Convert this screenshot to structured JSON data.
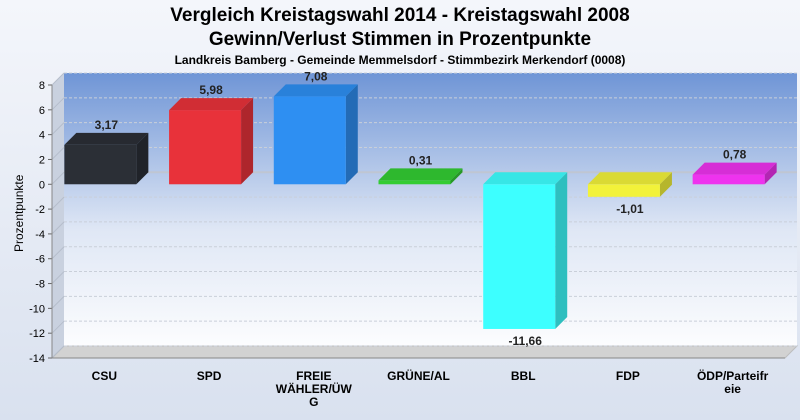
{
  "chart_data": {
    "type": "bar",
    "title": "Vergleich Kreistagswahl 2014 - Kreistagswahl 2008",
    "subtitle": "Gewinn/Verlust Stimmen in Prozentpunkte",
    "subtitle2": "Landkreis Bamberg - Gemeinde Memmelsdorf - Stimmbezirk Merkendorf (0008)",
    "ylabel": "Prozentpunkte",
    "xlabel": "",
    "ylim": [
      -14,
      8
    ],
    "yticks": [
      8,
      6,
      4,
      2,
      0,
      -2,
      -4,
      -6,
      -8,
      -10,
      -12,
      -14
    ],
    "grid": true,
    "categories": [
      "CSU",
      "SPD",
      "FREIE WÄHLER/ÜWG",
      "GRÜNE/AL",
      "BBL",
      "FDP",
      "ÖDP/Parteifreie"
    ],
    "category_label_lines": [
      [
        "CSU"
      ],
      [
        "SPD"
      ],
      [
        "FREIE",
        "WÄHLER/ÜW",
        "G"
      ],
      [
        "GRÜNE/AL"
      ],
      [
        "BBL"
      ],
      [
        "FDP"
      ],
      [
        "ÖDP/Parteifr",
        "eie"
      ]
    ],
    "values": [
      3.17,
      5.98,
      7.08,
      0.31,
      -11.66,
      -1.01,
      0.78
    ],
    "value_labels": [
      "3,17",
      "5,98",
      "7,08",
      "0,31",
      "-11,66",
      "-1,01",
      "0,78"
    ],
    "colors": [
      "#2b2f36",
      "#e8323a",
      "#2e8ff2",
      "#33cc33",
      "#3dffff",
      "#f2f23a",
      "#ee33ee"
    ]
  }
}
